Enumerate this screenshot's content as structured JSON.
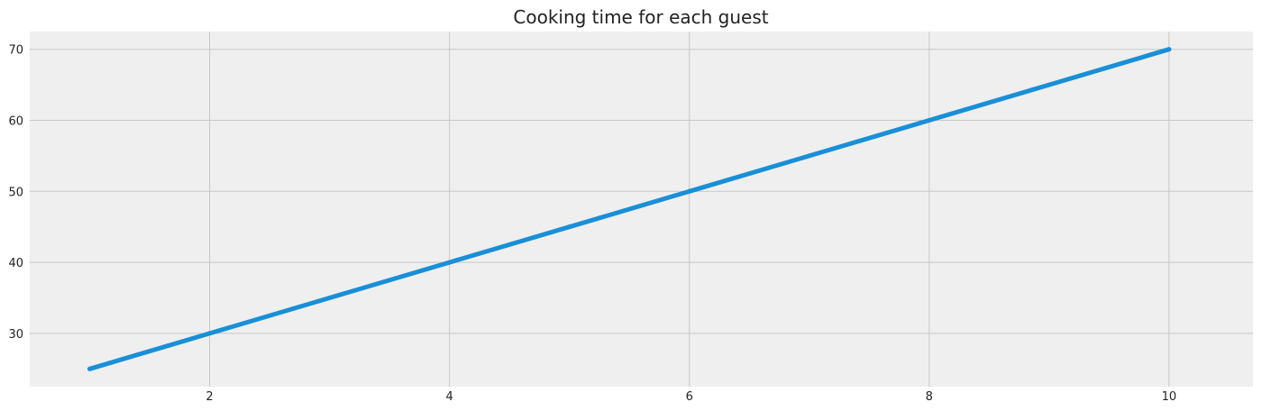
{
  "chart_data": {
    "type": "line",
    "title": "Cooking time for each guest",
    "xlabel": "",
    "ylabel": "",
    "x": [
      1,
      2,
      3,
      4,
      5,
      6,
      7,
      8,
      9,
      10
    ],
    "series": [
      {
        "values": [
          25,
          30,
          35,
          40,
          45,
          50,
          55,
          60,
          65,
          70
        ],
        "color": "#1a8fd6"
      }
    ],
    "xlim": [
      0.5,
      10.7
    ],
    "ylim": [
      22.5,
      72.5
    ],
    "xticks": [
      2,
      4,
      6,
      8,
      10
    ],
    "yticks": [
      30,
      40,
      50,
      60,
      70
    ],
    "grid": true,
    "background": "#efefef",
    "grid_color": "#c8c8c8"
  }
}
